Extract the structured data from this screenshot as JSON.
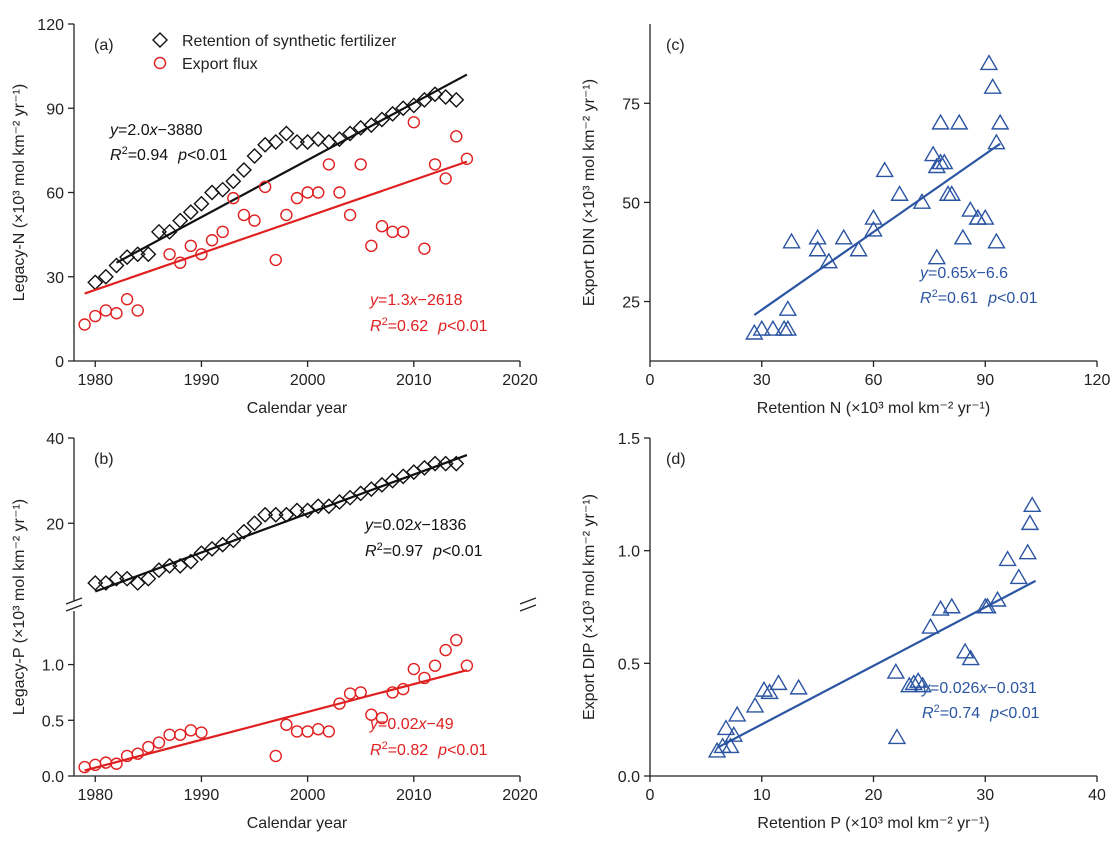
{
  "colors": {
    "black": "#111111",
    "red": "#e02020",
    "blue": "#2b55a2",
    "axis": "#222222"
  },
  "chart_data": [
    {
      "panel": "a",
      "panel_label": "(a)",
      "type": "scatter",
      "xlabel": "Calendar year",
      "ylabel": "Legacy-N (×10³ mol km⁻² yr⁻¹)",
      "xlim": [
        1978,
        2020
      ],
      "ylim": [
        0,
        120
      ],
      "xticks": [
        "1980",
        "1990",
        "2000",
        "2010",
        "2020"
      ],
      "yticks": [
        "0",
        "30",
        "60",
        "90",
        "120"
      ],
      "legend": {
        "position": "top-left",
        "entries": [
          "Retention of synthetic fertilizer",
          "Export flux"
        ]
      },
      "series": [
        {
          "name": "Retention of synthetic fertilizer",
          "marker": "diamond",
          "color": "#111111",
          "x": [
            1980,
            1981,
            1982,
            1983,
            1984,
            1985,
            1986,
            1987,
            1988,
            1989,
            1990,
            1991,
            1992,
            1993,
            1994,
            1995,
            1996,
            1997,
            1998,
            1999,
            2000,
            2001,
            2002,
            2003,
            2004,
            2005,
            2006,
            2007,
            2008,
            2009,
            2010,
            2011,
            2012,
            2013,
            2014
          ],
          "y": [
            28,
            30,
            34,
            37,
            38,
            38,
            46,
            46,
            50,
            53,
            56,
            60,
            61,
            64,
            68,
            73,
            77,
            78,
            81,
            78,
            78,
            79,
            78,
            79,
            81,
            83,
            84,
            86,
            88,
            90,
            91,
            93,
            95,
            94,
            93
          ],
          "fit": {
            "x": [
              1982,
              2015
            ],
            "y": [
              35,
              102
            ],
            "equation": "y=2.0x−3880",
            "r2": "R²=0.94",
            "p": "p<0.01"
          }
        },
        {
          "name": "Export flux",
          "marker": "circle",
          "color": "#e02020",
          "x": [
            1979,
            1980,
            1981,
            1982,
            1983,
            1984,
            1987,
            1988,
            1989,
            1990,
            1991,
            1992,
            1993,
            1994,
            1995,
            1996,
            1997,
            1998,
            1999,
            2000,
            2001,
            2002,
            2003,
            2004,
            2005,
            2006,
            2007,
            2008,
            2009,
            2010,
            2011,
            2012,
            2013,
            2014,
            2015
          ],
          "y": [
            13,
            16,
            18,
            17,
            22,
            18,
            38,
            35,
            41,
            38,
            43,
            46,
            58,
            52,
            50,
            62,
            36,
            52,
            58,
            60,
            60,
            70,
            60,
            52,
            70,
            41,
            48,
            46,
            46,
            85,
            40,
            70,
            65,
            80,
            72
          ],
          "fit": {
            "x": [
              1979,
              2015
            ],
            "y": [
              24,
              71
            ],
            "equation": "y=1.3x−2618",
            "r2": "R²=0.62",
            "p": "p<0.01"
          }
        }
      ]
    },
    {
      "panel": "b",
      "panel_label": "(b)",
      "type": "scatter",
      "xlabel": "Calendar year",
      "ylabel": "Legacy-P (×10³ mol km⁻² yr⁻¹)",
      "xlim": [
        1978,
        2020
      ],
      "upper_ylim": [
        2,
        40
      ],
      "lower_ylim": [
        0,
        1.4
      ],
      "xticks": [
        "1980",
        "1990",
        "2000",
        "2010",
        "2020"
      ],
      "upper_yticks": [
        "20",
        "40"
      ],
      "lower_yticks": [
        "0.0",
        "0.5",
        "1.0"
      ],
      "series": [
        {
          "name": "Retention of synthetic fertilizer",
          "marker": "diamond",
          "color": "#111111",
          "axis": "upper",
          "x": [
            1980,
            1981,
            1982,
            1983,
            1984,
            1985,
            1986,
            1987,
            1988,
            1989,
            1990,
            1991,
            1992,
            1993,
            1994,
            1995,
            1996,
            1997,
            1998,
            1999,
            2000,
            2001,
            2002,
            2003,
            2004,
            2005,
            2006,
            2007,
            2008,
            2009,
            2010,
            2011,
            2012,
            2013,
            2014
          ],
          "y": [
            6,
            6,
            7,
            7,
            6,
            7,
            9,
            10,
            10,
            11,
            13,
            14,
            15,
            16,
            18,
            20,
            22,
            22,
            22,
            23,
            23,
            24,
            24,
            25,
            26,
            27,
            28,
            29,
            30,
            31,
            32,
            33,
            34,
            34,
            34
          ],
          "fit": {
            "x": [
              1980,
              2015
            ],
            "y": [
              4,
              36
            ],
            "equation": "y=0.02x−1836",
            "r2": "R²=0.97",
            "p": "p<0.01"
          }
        },
        {
          "name": "Export flux",
          "marker": "circle",
          "color": "#e02020",
          "axis": "lower",
          "x": [
            1979,
            1980,
            1981,
            1982,
            1983,
            1984,
            1985,
            1986,
            1987,
            1988,
            1989,
            1990,
            1997,
            1998,
            1999,
            2000,
            2001,
            2002,
            2003,
            2004,
            2005,
            2006,
            2007,
            2008,
            2009,
            2010,
            2011,
            2012,
            2013,
            2014,
            2015
          ],
          "y": [
            0.08,
            0.1,
            0.12,
            0.11,
            0.18,
            0.2,
            0.26,
            0.3,
            0.37,
            0.37,
            0.41,
            0.39,
            0.18,
            0.46,
            0.4,
            0.4,
            0.42,
            0.4,
            0.65,
            0.74,
            0.75,
            0.55,
            0.52,
            0.75,
            0.78,
            0.96,
            0.88,
            0.99,
            1.13,
            1.22,
            0.99
          ],
          "fit": {
            "x": [
              1979,
              2015
            ],
            "y": [
              0.05,
              0.95
            ],
            "equation": "y=0.02x−49",
            "r2": "R²=0.82",
            "p": "p<0.01"
          }
        }
      ]
    },
    {
      "panel": "c",
      "panel_label": "(c)",
      "type": "scatter",
      "xlabel": "Retention N (×10³ mol km⁻² yr⁻¹)",
      "ylabel": "Export DIN (×10³ mol km⁻² yr⁻¹)",
      "xlim": [
        0,
        120
      ],
      "ylim": [
        10,
        95
      ],
      "xticks": [
        "0",
        "30",
        "60",
        "90",
        "120"
      ],
      "yticks": [
        "25",
        "50",
        "75"
      ],
      "series": [
        {
          "marker": "triangle",
          "color": "#2b55a2",
          "x": [
            28,
            30,
            33,
            36,
            37,
            37,
            38,
            45,
            45,
            48,
            52,
            56,
            60,
            60,
            63,
            67,
            73,
            76,
            77,
            77,
            78,
            78,
            79,
            80,
            81,
            83,
            84,
            86,
            88,
            88,
            90,
            91,
            92,
            93,
            93,
            94
          ],
          "y": [
            17,
            18,
            18,
            18,
            23,
            18,
            40,
            41,
            38,
            35,
            41,
            38,
            43,
            46,
            58,
            52,
            50,
            62,
            36,
            59,
            60,
            70,
            60,
            52,
            52,
            70,
            41,
            48,
            46,
            46,
            46,
            85,
            79,
            40,
            65,
            70
          ],
          "fit": {
            "x": [
              28,
              94
            ],
            "y": [
              21.6,
              64.8
            ],
            "equation": "y=0.65x−6.6",
            "r2": "R²=0.61",
            "p": "p<0.01"
          }
        }
      ]
    },
    {
      "panel": "d",
      "panel_label": "(d)",
      "type": "scatter",
      "xlabel": "Retention P (×10³ mol km⁻² yr⁻¹)",
      "ylabel": "Export DIP (×10³ mol km⁻² yr⁻¹)",
      "xlim": [
        0,
        40
      ],
      "ylim": [
        0,
        1.5
      ],
      "xticks": [
        "0",
        "10",
        "20",
        "30",
        "40"
      ],
      "yticks": [
        "0.0",
        "0.5",
        "1.0",
        "1.5"
      ],
      "series": [
        {
          "marker": "triangle",
          "color": "#2b55a2",
          "x": [
            6,
            6.5,
            6.8,
            7.2,
            7.5,
            7.8,
            9.4,
            10.2,
            10.7,
            11.5,
            13.3,
            22,
            22.1,
            23.2,
            23.6,
            24,
            24.4,
            25.1,
            26,
            27,
            28.2,
            28.7,
            30,
            30.2,
            31.1,
            32,
            33,
            33.8,
            34,
            34.2
          ],
          "y": [
            0.11,
            0.13,
            0.21,
            0.13,
            0.18,
            0.27,
            0.31,
            0.38,
            0.37,
            0.41,
            0.39,
            0.46,
            0.17,
            0.4,
            0.41,
            0.42,
            0.4,
            0.66,
            0.74,
            0.75,
            0.55,
            0.52,
            0.75,
            0.75,
            0.78,
            0.96,
            0.88,
            0.99,
            1.12,
            1.2
          ],
          "fit": {
            "x": [
              6,
              34.5
            ],
            "y": [
              0.125,
              0.866
            ],
            "equation": "y=0.026x−0.031",
            "r2": "R²=0.74",
            "p": "p<0.01"
          }
        }
      ]
    }
  ]
}
